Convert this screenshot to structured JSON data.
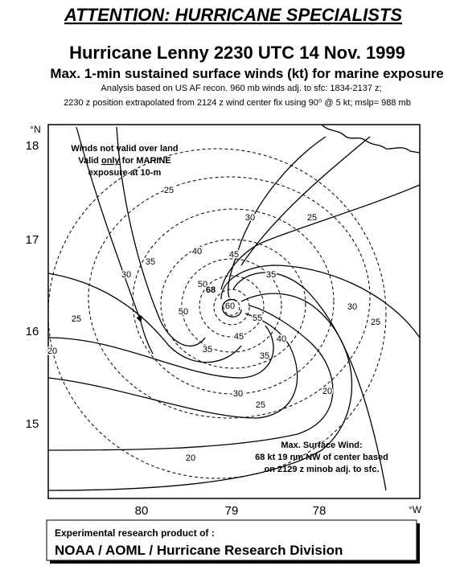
{
  "header": {
    "banner": "ATTENTION: HURRICANE SPECIALISTS",
    "title": "Hurricane Lenny 2230 UTC 14 Nov. 1999",
    "subtitle": "Max. 1-min sustained surface winds (kt) for marine exposure",
    "analysis_lines": [
      "Analysis based on US AF recon. 960 mb winds adj. to sfc: 1834-2137 z;",
      "2230 z position extrapolated from 2124 z wind center fix using  90⁰ @ 5 kt; mslp= 988 mb"
    ]
  },
  "map": {
    "lat_unit": "°N",
    "lon_unit": "°W",
    "lat_labels": [
      "18",
      "17",
      "16",
      "15"
    ],
    "lon_labels": [
      "80",
      "79",
      "78"
    ],
    "land_note": {
      "line1": "Winds not valid over land",
      "line2": [
        "Valid",
        "only",
        "for MARINE"
      ],
      "line3": "exposure at 10-m"
    },
    "max_wind_note": [
      "Max. Surface Wind:",
      "68 kt 19 nm NW of center based",
      "on 2129 z minob adj. to sfc."
    ],
    "contour_labels": [
      "25",
      "30",
      "25",
      "35",
      "30",
      "40",
      "45",
      "35",
      "50",
      "68",
      "60",
      "50",
      "25",
      "30",
      "25",
      "55",
      "45",
      "40",
      "35",
      "35",
      "20",
      "30",
      "20",
      "25",
      "20"
    ]
  },
  "footer": {
    "line1": "Experimental research product of :",
    "line2": "NOAA / AOML / Hurricane Research Division"
  }
}
